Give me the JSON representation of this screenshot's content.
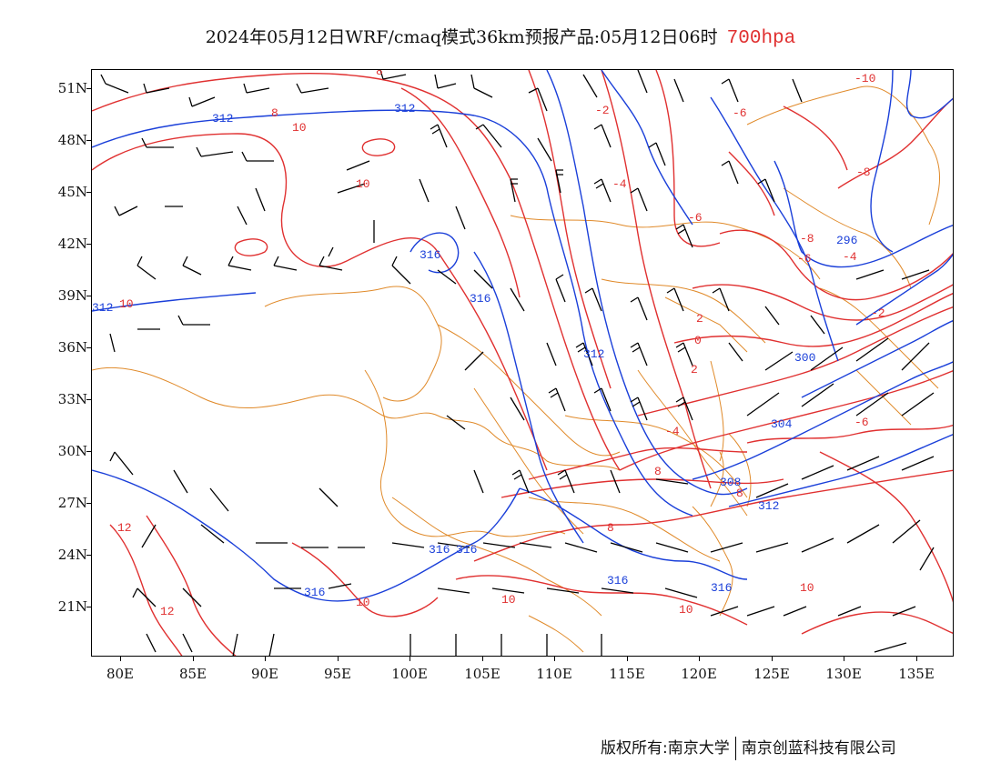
{
  "title": {
    "main": "2024年05月12日WRF/cmaq模式36km预报产品:05月12日06时",
    "level": "700hpa",
    "level_color": "#e03030"
  },
  "axes": {
    "y_labels": [
      "51N",
      "48N",
      "45N",
      "42N",
      "39N",
      "36N",
      "33N",
      "30N",
      "27N",
      "24N",
      "21N"
    ],
    "x_labels": [
      "80E",
      "85E",
      "90E",
      "95E",
      "100E",
      "105E",
      "110E",
      "115E",
      "120E",
      "125E",
      "130E",
      "135E"
    ]
  },
  "contours": {
    "temperature_color": "#e03030",
    "geopotential_color": "#1a3fd9",
    "boundary_color": "#e08a2a",
    "temperature_labels": [
      "8",
      "8",
      "10",
      "10",
      "10",
      "-2",
      "-4",
      "-6",
      "-6",
      "-4",
      "-2",
      "0",
      "2",
      "2",
      "-4",
      "-6",
      "-8",
      "-10",
      "10",
      "-6",
      "-8",
      "8",
      "8",
      "8",
      "10",
      "10",
      "10",
      "12",
      "12"
    ],
    "geopotential_labels": [
      "312",
      "312",
      "312",
      "316",
      "316",
      "312",
      "300",
      "296",
      "304",
      "308",
      "312",
      "316",
      "316",
      "316",
      "316",
      "316"
    ]
  },
  "footer": {
    "copyright": "版权所有:南京大学",
    "company": "南京创蓝科技有限公司"
  }
}
